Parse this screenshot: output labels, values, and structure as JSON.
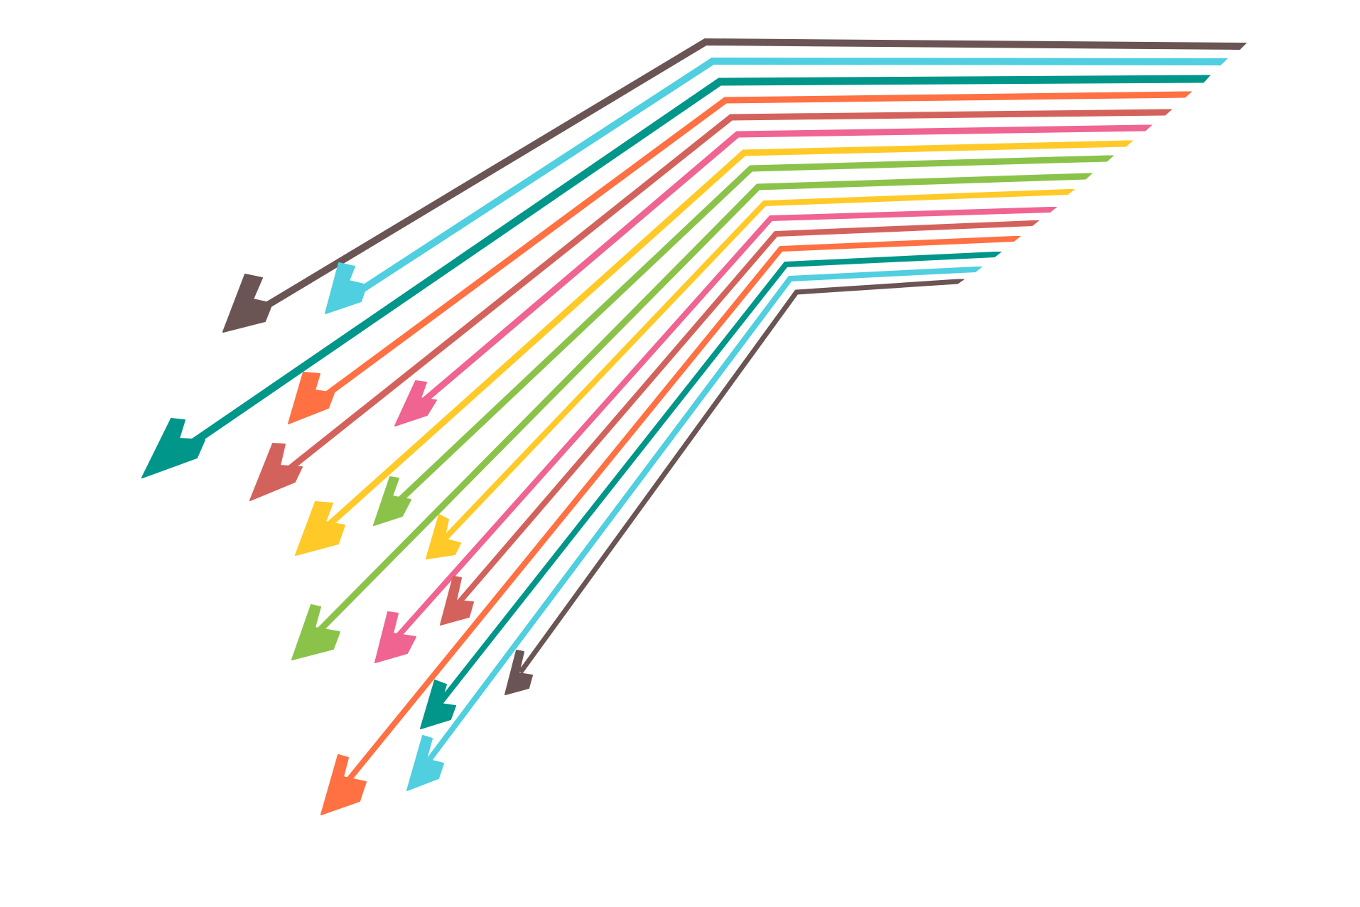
{
  "palette": {
    "brown": "#6b5454",
    "cyan": "#4fcfe0",
    "teal": "#00968a",
    "orange": "#ff7043",
    "red": "#d4625c",
    "pink": "#f06492",
    "yellow": "#ffca28",
    "green": "#8bc34a"
  },
  "arrows": [
    {
      "color": "brown"
    },
    {
      "color": "cyan"
    },
    {
      "color": "teal"
    },
    {
      "color": "orange"
    },
    {
      "color": "red"
    },
    {
      "color": "pink"
    },
    {
      "color": "yellow"
    },
    {
      "color": "green"
    },
    {
      "color": "green"
    },
    {
      "color": "yellow"
    },
    {
      "color": "pink"
    },
    {
      "color": "red"
    },
    {
      "color": "orange"
    },
    {
      "color": "teal"
    },
    {
      "color": "cyan"
    },
    {
      "color": "brown"
    }
  ]
}
